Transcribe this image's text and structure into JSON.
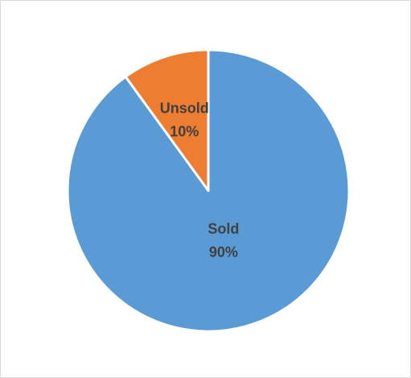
{
  "chart_data": {
    "type": "pie",
    "title": "",
    "start_angle_deg": 0,
    "direction": "clockwise",
    "slices": [
      {
        "category": "Sold",
        "value": 90,
        "percent_label": "90%",
        "color": "#5B9BD5"
      },
      {
        "category": "Unsold",
        "value": 10,
        "percent_label": "10%",
        "color": "#ED7D31"
      }
    ],
    "legend": "none",
    "data_labels": "category and percentage, inside slices"
  }
}
